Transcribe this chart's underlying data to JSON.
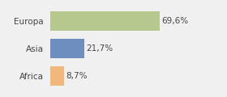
{
  "categories": [
    "Europa",
    "Asia",
    "Africa"
  ],
  "values": [
    69.6,
    21.7,
    8.7
  ],
  "labels": [
    "69,6%",
    "21,7%",
    "8,7%"
  ],
  "bar_colors": [
    "#b5c98e",
    "#6e8ebf",
    "#f0b87a"
  ],
  "background_color": "#f0f0f0",
  "xlim": [
    0,
    105
  ],
  "bar_height": 0.72,
  "label_fontsize": 7.5,
  "tick_fontsize": 7.5
}
